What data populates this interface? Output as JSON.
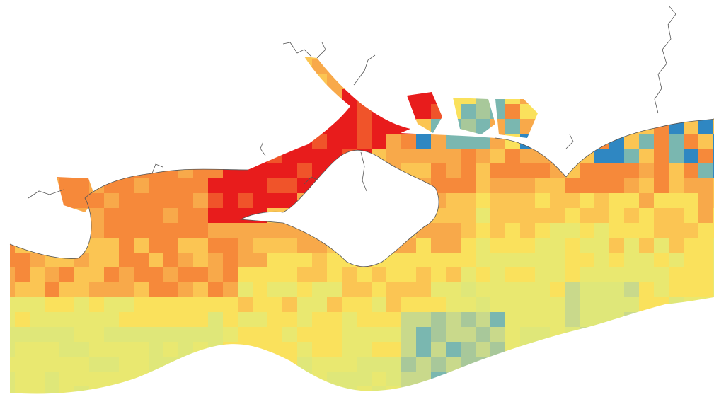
{
  "map": {
    "type": "raster-heatmap",
    "palette": {
      "red": "#e81c1c",
      "red_orange": "#f0542a",
      "orange": "#f6893a",
      "light_orange": "#f8a94a",
      "amber": "#fbc553",
      "yellow": "#fae15c",
      "light_yellow": "#e9e870",
      "yellow_green": "#dfe779",
      "pale_green": "#c9d98b",
      "sage": "#a8c89a",
      "teal": "#7ab7b0",
      "blue": "#2f87c2",
      "land": "#ffffff",
      "coastline": "#555555"
    },
    "text_labels": []
  }
}
